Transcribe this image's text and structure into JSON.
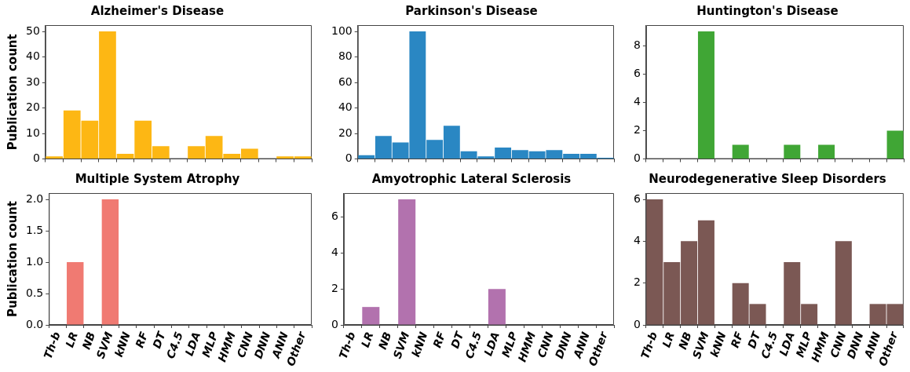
{
  "chart_data": [
    {
      "type": "bar",
      "title": "Alzheimer's Disease",
      "ylabel": "Publication count",
      "categories": [
        null,
        null,
        null,
        null,
        null,
        null,
        null,
        null,
        null,
        null,
        null,
        null,
        null,
        null,
        null
      ],
      "values": [
        1,
        19,
        15,
        50,
        2,
        15,
        5,
        0,
        5,
        9,
        2,
        4,
        0,
        1,
        1
      ],
      "color": "#fdb714",
      "ylim": [
        0,
        52.5
      ],
      "yticks": [
        0,
        10,
        20,
        30,
        40,
        50
      ],
      "tick_labels": "y",
      "grid": false,
      "legend": false
    },
    {
      "type": "bar",
      "title": "Parkinson's Disease",
      "categories": [
        null,
        null,
        null,
        null,
        null,
        null,
        null,
        null,
        null,
        null,
        null,
        null,
        null,
        null,
        null
      ],
      "values": [
        3,
        18,
        13,
        100,
        15,
        26,
        6,
        2,
        9,
        7,
        6,
        7,
        4,
        4,
        1
      ],
      "color": "#2a87c3",
      "ylim": [
        0,
        105
      ],
      "yticks": [
        0,
        20,
        40,
        60,
        80,
        100
      ],
      "tick_labels": "y",
      "grid": false,
      "legend": false
    },
    {
      "type": "bar",
      "title": "Huntington's Disease",
      "categories": [
        null,
        null,
        null,
        null,
        null,
        null,
        null,
        null,
        null,
        null,
        null,
        null,
        null,
        null,
        null
      ],
      "values": [
        0,
        0,
        0,
        9,
        0,
        1,
        0,
        0,
        1,
        0,
        1,
        0,
        0,
        0,
        2
      ],
      "color": "#40a635",
      "ylim": [
        0,
        9.45
      ],
      "yticks": [
        0,
        2,
        4,
        6,
        8
      ],
      "tick_labels": "y",
      "grid": false,
      "legend": false
    },
    {
      "type": "bar",
      "title": "Multiple System Atrophy",
      "ylabel": "Publication count",
      "categories": [
        "Th-b",
        "LR",
        "NB",
        "SVM",
        "kNN",
        "RF",
        "DT",
        "C4.5",
        "LDA",
        "MLP",
        "HMM",
        "CNN",
        "DNN",
        "ANN",
        "Other"
      ],
      "values": [
        0,
        1,
        0,
        2,
        0,
        0,
        0,
        0,
        0,
        0,
        0,
        0,
        0,
        0,
        0
      ],
      "color": "#f07a72",
      "ylim": [
        0,
        2.1
      ],
      "yticks": [
        {
          "value": 0,
          "label": "0.0"
        },
        {
          "value": 0.5,
          "label": "0.5"
        },
        {
          "value": 1,
          "label": "1.0"
        },
        {
          "value": 1.5,
          "label": "1.5"
        },
        {
          "value": 2,
          "label": "2.0"
        }
      ],
      "grid": false,
      "legend": false
    },
    {
      "type": "bar",
      "title": "Amyotrophic Lateral Sclerosis",
      "categories": [
        "Th-b",
        "LR",
        "NB",
        "SVM",
        "kNN",
        "RF",
        "DT",
        "C4.5",
        "LDA",
        "MLP",
        "HMM",
        "CNN",
        "DNN",
        "ANN",
        "Other"
      ],
      "values": [
        0,
        1,
        0,
        7,
        0,
        0,
        0,
        0,
        2,
        0,
        0,
        0,
        0,
        0,
        0
      ],
      "color": "#b272ae",
      "ylim": [
        0,
        7.35
      ],
      "yticks": [
        0,
        2,
        4,
        6
      ],
      "grid": false,
      "legend": false
    },
    {
      "type": "bar",
      "title": "Neurodegenerative Sleep Disorders",
      "categories": [
        "Th-b",
        "LR",
        "NB",
        "SVM",
        "kNN",
        "RF",
        "DT",
        "C4.5",
        "LDA",
        "MLP",
        "HMM",
        "CNN",
        "DNN",
        "ANN",
        "Other"
      ],
      "values": [
        6,
        3,
        4,
        5,
        0,
        2,
        1,
        0,
        3,
        1,
        0,
        4,
        0,
        1,
        1
      ],
      "color": "#7b5854",
      "ylim": [
        0,
        6.3
      ],
      "yticks": [
        0,
        2,
        4,
        6
      ],
      "grid": false,
      "legend": false
    }
  ]
}
